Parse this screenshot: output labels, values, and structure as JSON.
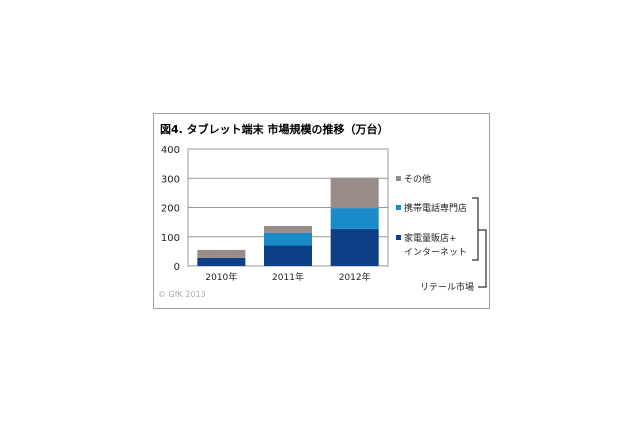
{
  "chart_data": {
    "type": "bar",
    "stacked": true,
    "title": "図4. タブレット端末 市場規模の推移（万台）",
    "categories": [
      "2010年",
      "2011年",
      "2012年"
    ],
    "series": [
      {
        "name": "家電量販店+インターネット",
        "values": [
          28,
          70,
          127
        ],
        "color": "#0c3f85"
      },
      {
        "name": "携帯電話専門店",
        "values": [
          0,
          43,
          71
        ],
        "color": "#1a8ac9"
      },
      {
        "name": "その他",
        "values": [
          27,
          24,
          104
        ],
        "color": "#978c88"
      }
    ],
    "ylim": [
      0,
      400
    ],
    "yticks": [
      0,
      100,
      200,
      300,
      400
    ],
    "grid": true,
    "legend_placement": "right",
    "bracket_label": "リテール市場",
    "legend_line2": "インターネット",
    "legend_line1": "家電量販店+",
    "copyright": "© GfK 2013"
  }
}
